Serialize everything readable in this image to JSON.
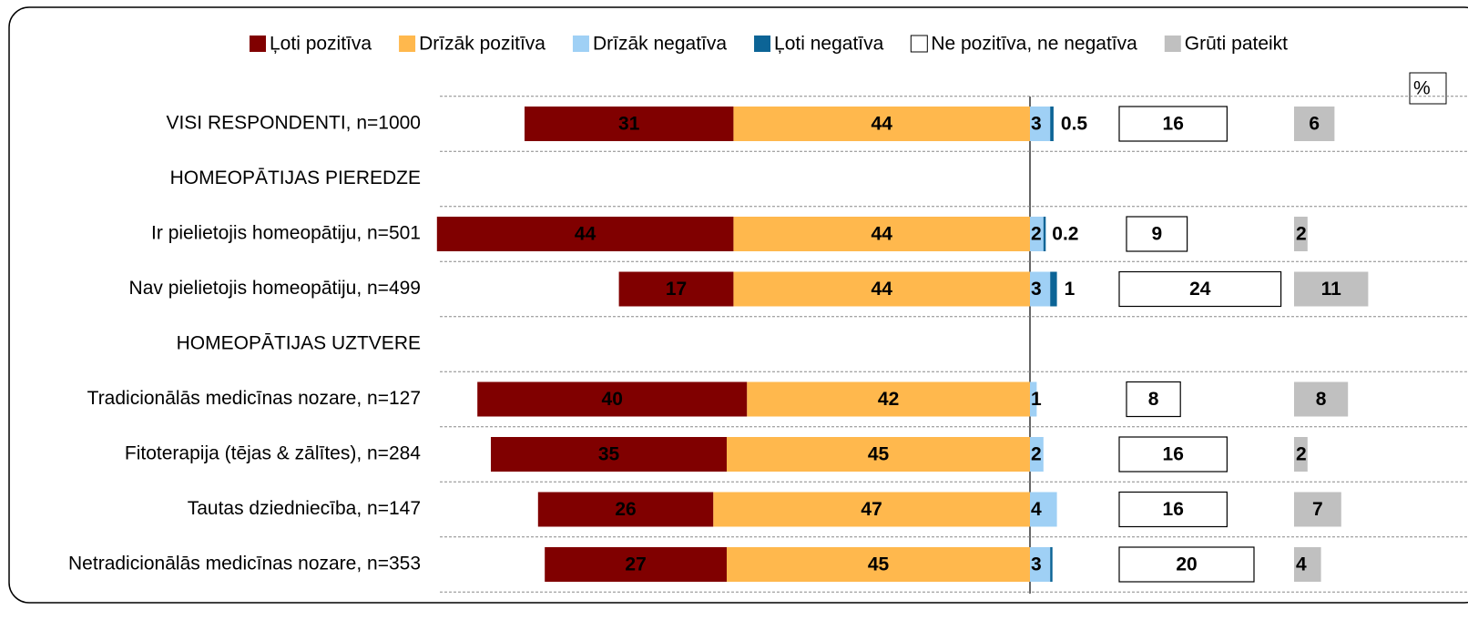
{
  "chart_data": {
    "type": "diverging-bar",
    "unit_label": "%",
    "categories": [
      "VISI RESPONDENTI, n=1000",
      "HOMEOPĀTIJAS PIEREDZE",
      "Ir pielietojis homeopātiju, n=501",
      "Nav pielietojis homeopātiju, n=499",
      "HOMEOPĀTIJAS UZTVERE",
      "Tradicionālās medicīnas nozare, n=127",
      "Fitoterapija (tējas & zālītes), n=284",
      "Tautas dziedniecība, n=147",
      "Netradicionālās medicīnas nozare, n=353"
    ],
    "series": [
      {
        "name": "Ļoti pozitīva",
        "color": "#800000",
        "values": [
          31,
          null,
          44,
          17,
          null,
          40,
          35,
          26,
          27
        ]
      },
      {
        "name": "Drīzāk pozitīva",
        "color": "#ffb84d",
        "values": [
          44,
          null,
          44,
          44,
          null,
          42,
          45,
          47,
          45
        ]
      },
      {
        "name": "Drīzāk negatīva",
        "color": "#9fd0f5",
        "values": [
          3,
          null,
          2,
          3,
          null,
          1,
          2,
          4,
          3
        ]
      },
      {
        "name": "Ļoti negatīva",
        "color": "#0c6496",
        "values": [
          0.5,
          null,
          0.2,
          1,
          null,
          null,
          null,
          null,
          0.3
        ],
        "value_labels": [
          "0.5",
          null,
          "0.2",
          "1",
          null,
          null,
          null,
          null,
          null
        ]
      },
      {
        "name": "Ne pozitīva, ne negatīva",
        "color": "#ffffff",
        "values": [
          16,
          null,
          9,
          24,
          null,
          8,
          16,
          16,
          20
        ]
      },
      {
        "name": "Grūti pateikt",
        "color": "#c0c0c0",
        "values": [
          6,
          null,
          2,
          11,
          null,
          8,
          2,
          7,
          4
        ]
      }
    ]
  }
}
